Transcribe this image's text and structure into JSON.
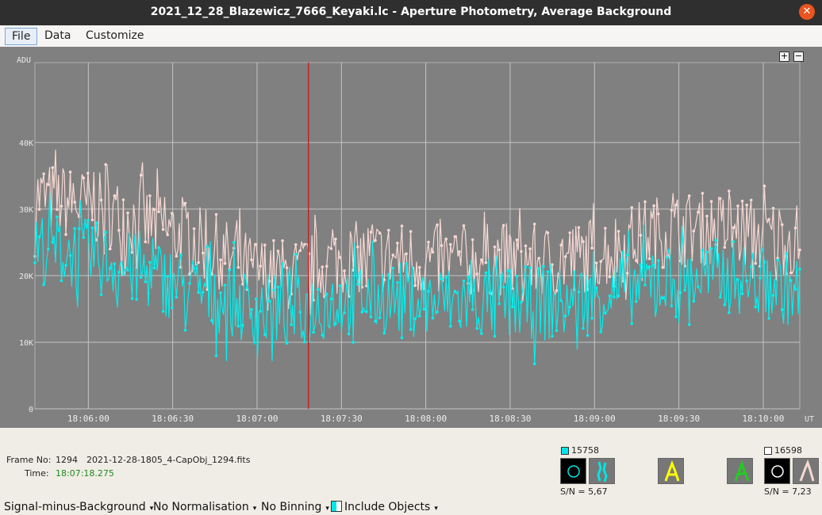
{
  "window": {
    "title": "2021_12_28_Blazewicz_7666_Keyaki.lc - Aperture Photometry, Average Background"
  },
  "menu": {
    "file": "File",
    "data": "Data",
    "customize": "Customize"
  },
  "zoom": {
    "plus": "+",
    "minus": "−"
  },
  "chart_data": {
    "type": "line",
    "ylabel": "ADU",
    "xlabel": "UT",
    "y_ticks": [
      "0",
      "10K",
      "20K",
      "30K",
      "40K"
    ],
    "ylim": [
      0,
      52000
    ],
    "x_ticks": [
      "18:06:00",
      "18:06:30",
      "18:07:00",
      "18:07:30",
      "18:08:00",
      "18:08:30",
      "18:09:00",
      "18:09:30",
      "18:10:00"
    ],
    "x_range": [
      "18:05:41",
      "18:10:13"
    ],
    "cursor_time": "18:07:18.275",
    "grid": true,
    "series": [
      {
        "color": "#f7d8d3",
        "trend": [
          [
            41,
            32000
          ],
          [
            55,
            30500
          ],
          [
            70,
            28000
          ],
          [
            80,
            26000
          ],
          [
            90,
            23500
          ],
          [
            100,
            20500
          ],
          [
            110,
            20000
          ],
          [
            120,
            22000
          ],
          [
            130,
            23000
          ],
          [
            140,
            22500
          ],
          [
            150,
            22000
          ],
          [
            165,
            22500
          ],
          [
            180,
            22000
          ],
          [
            195,
            24000
          ],
          [
            205,
            26500
          ],
          [
            215,
            27000
          ],
          [
            225,
            27000
          ],
          [
            235,
            26000
          ],
          [
            245,
            25500
          ]
        ]
      },
      {
        "color": "#00f0f0",
        "trend": [
          [
            41,
            24500
          ],
          [
            55,
            23000
          ],
          [
            70,
            20500
          ],
          [
            80,
            18500
          ],
          [
            90,
            16500
          ],
          [
            100,
            15000
          ],
          [
            110,
            14500
          ],
          [
            120,
            16000
          ],
          [
            130,
            17000
          ],
          [
            140,
            16500
          ],
          [
            150,
            16000
          ],
          [
            165,
            16000
          ],
          [
            180,
            15500
          ],
          [
            195,
            17500
          ],
          [
            205,
            19000
          ],
          [
            215,
            19500
          ],
          [
            225,
            20000
          ],
          [
            235,
            19000
          ],
          [
            245,
            17500
          ]
        ]
      }
    ]
  },
  "info": {
    "frame_label": "Frame No:",
    "frame_no": "1294",
    "frame_file": "2021-12-28-1805_4-CapObj_1294.fits",
    "time_label": "Time:",
    "time_value": "18:07:18.275",
    "obj1_value": "15758",
    "obj1_sn": "S/N =  5,67",
    "obj2_value": "16598",
    "obj2_sn": "S/N =  7,23",
    "colors": {
      "target": "#00e5e5",
      "comp1": "#ffff00",
      "comp2": "#22cc22",
      "check": "#ffffff",
      "time_green": "#1d8a1d"
    }
  },
  "status": {
    "mode": "Signal-minus-Background",
    "normalisation": "No Normalisation",
    "binning": "No Binning",
    "include": "Include Objects"
  }
}
